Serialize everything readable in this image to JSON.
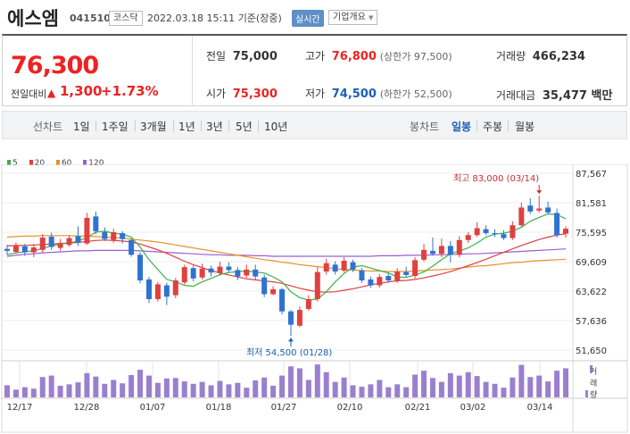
{
  "header": {
    "name": "에스엠",
    "code": "041510",
    "market": "코스닥",
    "datetime": "2022.03.18 15:11",
    "basis": "기준(장중)",
    "realtime": "실시간",
    "company_info": "기업개요"
  },
  "summary": {
    "current_price": "76,300",
    "change_label": "전일대비",
    "change_arrow": "▲",
    "change": "1,300",
    "change_pct": "+1.73%",
    "prev_label": "전일",
    "prev": "75,000",
    "high_label": "고가",
    "high": "76,800",
    "upper_limit": "(상한가 97,500)",
    "volume_label": "거래량",
    "volume": "466,234",
    "open_label": "시가",
    "open": "75,300",
    "low_label": "저가",
    "low": "74,500",
    "lower_limit": "(하한가 52,500)",
    "amount_label": "거래대금",
    "amount": "35,477 백만"
  },
  "toolbar": {
    "line_chart": "선차트",
    "ranges": [
      "1일",
      "1주일",
      "3개월",
      "1년",
      "3년",
      "5년",
      "10년"
    ],
    "candle_chart": "봉차트",
    "candle_types": [
      "일봉",
      "주봉",
      "월봉"
    ],
    "active_candle": "일봉"
  },
  "legend": [
    {
      "label": "5",
      "color": "#3fae49"
    },
    {
      "label": "20",
      "color": "#e04040"
    },
    {
      "label": "60",
      "color": "#e8922e"
    },
    {
      "label": "120",
      "color": "#9b5fd0"
    }
  ],
  "annotations": {
    "high": "최고 83,000 (03/14)",
    "low": "최저 54,500 (01/28)"
  },
  "volume_label": "거래량",
  "chart_data": {
    "type": "candlestick",
    "y_ticks": [
      "87,567",
      "81,581",
      "75,595",
      "69,609",
      "63,622",
      "57,636",
      "51,650"
    ],
    "ylim": [
      51650,
      87567
    ],
    "x_ticks": [
      "12/17",
      "12/28",
      "01/07",
      "01/18",
      "01/27",
      "02/10",
      "02/21",
      "03/02",
      "03/14"
    ],
    "up_color": "#e04040",
    "down_color": "#2f73d1",
    "candles": [
      {
        "o": 72200,
        "c": 71800,
        "h": 73000,
        "l": 71000
      },
      {
        "o": 71600,
        "c": 72800,
        "h": 73500,
        "l": 71200
      },
      {
        "o": 72700,
        "c": 71500,
        "h": 73200,
        "l": 70800
      },
      {
        "o": 71500,
        "c": 72500,
        "h": 73200,
        "l": 70500
      },
      {
        "o": 72000,
        "c": 74500,
        "h": 75200,
        "l": 71500
      },
      {
        "o": 74700,
        "c": 72600,
        "h": 75500,
        "l": 72000
      },
      {
        "o": 72400,
        "c": 73200,
        "h": 74200,
        "l": 71800
      },
      {
        "o": 73000,
        "c": 74400,
        "h": 75000,
        "l": 72600
      },
      {
        "o": 74800,
        "c": 73500,
        "h": 76800,
        "l": 72800
      },
      {
        "o": 73300,
        "c": 78500,
        "h": 79500,
        "l": 73000
      },
      {
        "o": 78800,
        "c": 75800,
        "h": 79800,
        "l": 75200
      },
      {
        "o": 75600,
        "c": 74200,
        "h": 76600,
        "l": 73800
      },
      {
        "o": 74000,
        "c": 75600,
        "h": 76300,
        "l": 73400
      },
      {
        "o": 75400,
        "c": 74200,
        "h": 75800,
        "l": 73300
      },
      {
        "o": 74000,
        "c": 71000,
        "h": 74300,
        "l": 70600
      },
      {
        "o": 71000,
        "c": 65800,
        "h": 71500,
        "l": 65200
      },
      {
        "o": 66000,
        "c": 62000,
        "h": 66500,
        "l": 61200
      },
      {
        "o": 62000,
        "c": 65000,
        "h": 65500,
        "l": 61500
      },
      {
        "o": 64800,
        "c": 62500,
        "h": 65300,
        "l": 60800
      },
      {
        "o": 62800,
        "c": 65800,
        "h": 66300,
        "l": 62200
      },
      {
        "o": 65400,
        "c": 68500,
        "h": 69000,
        "l": 65000
      },
      {
        "o": 68300,
        "c": 66200,
        "h": 68800,
        "l": 65600
      },
      {
        "o": 66400,
        "c": 68200,
        "h": 69200,
        "l": 66000
      },
      {
        "o": 68200,
        "c": 67400,
        "h": 68800,
        "l": 66600
      },
      {
        "o": 67300,
        "c": 68600,
        "h": 69600,
        "l": 66800
      },
      {
        "o": 68600,
        "c": 67900,
        "h": 69500,
        "l": 67300
      },
      {
        "o": 67900,
        "c": 66600,
        "h": 68500,
        "l": 65900
      },
      {
        "o": 66800,
        "c": 68000,
        "h": 69000,
        "l": 66300
      },
      {
        "o": 68000,
        "c": 66600,
        "h": 69000,
        "l": 66000
      },
      {
        "o": 66400,
        "c": 63000,
        "h": 67000,
        "l": 62400
      },
      {
        "o": 63000,
        "c": 64000,
        "h": 64600,
        "l": 62800
      },
      {
        "o": 64000,
        "c": 59500,
        "h": 64300,
        "l": 58900
      },
      {
        "o": 59500,
        "c": 56800,
        "h": 59800,
        "l": 54500
      },
      {
        "o": 56600,
        "c": 59800,
        "h": 60500,
        "l": 56300
      },
      {
        "o": 60000,
        "c": 62000,
        "h": 62800,
        "l": 59600
      },
      {
        "o": 62000,
        "c": 67500,
        "h": 68500,
        "l": 61500
      },
      {
        "o": 67600,
        "c": 69300,
        "h": 70200,
        "l": 67000
      },
      {
        "o": 69000,
        "c": 67600,
        "h": 69700,
        "l": 67000
      },
      {
        "o": 67800,
        "c": 69800,
        "h": 70500,
        "l": 67400
      },
      {
        "o": 69500,
        "c": 68000,
        "h": 70000,
        "l": 67500
      },
      {
        "o": 67800,
        "c": 65800,
        "h": 68300,
        "l": 65300
      },
      {
        "o": 66000,
        "c": 64800,
        "h": 66600,
        "l": 64300
      },
      {
        "o": 64800,
        "c": 66500,
        "h": 67100,
        "l": 64300
      },
      {
        "o": 66700,
        "c": 65800,
        "h": 67300,
        "l": 65300
      },
      {
        "o": 65800,
        "c": 67600,
        "h": 68300,
        "l": 65300
      },
      {
        "o": 67500,
        "c": 66900,
        "h": 68600,
        "l": 66400
      },
      {
        "o": 66700,
        "c": 69900,
        "h": 70500,
        "l": 66200
      },
      {
        "o": 70000,
        "c": 72000,
        "h": 73200,
        "l": 69600
      },
      {
        "o": 71800,
        "c": 71200,
        "h": 74500,
        "l": 70800
      },
      {
        "o": 71200,
        "c": 72800,
        "h": 74300,
        "l": 70500
      },
      {
        "o": 72800,
        "c": 71000,
        "h": 73800,
        "l": 69500
      },
      {
        "o": 71000,
        "c": 74000,
        "h": 74800,
        "l": 70500
      },
      {
        "o": 74000,
        "c": 75000,
        "h": 75600,
        "l": 73400
      },
      {
        "o": 75000,
        "c": 76400,
        "h": 77600,
        "l": 74600
      },
      {
        "o": 76200,
        "c": 75400,
        "h": 77000,
        "l": 75000
      },
      {
        "o": 75400,
        "c": 75200,
        "h": 76200,
        "l": 74600
      },
      {
        "o": 75200,
        "c": 74400,
        "h": 76000,
        "l": 74000
      },
      {
        "o": 74400,
        "c": 77000,
        "h": 77800,
        "l": 74000
      },
      {
        "o": 77000,
        "c": 80600,
        "h": 81600,
        "l": 76600
      },
      {
        "o": 81000,
        "c": 79800,
        "h": 82500,
        "l": 79300
      },
      {
        "o": 80000,
        "c": 80400,
        "h": 83000,
        "l": 79600
      },
      {
        "o": 80600,
        "c": 79600,
        "h": 81800,
        "l": 79200
      },
      {
        "o": 79500,
        "c": 75000,
        "h": 80400,
        "l": 74500
      },
      {
        "o": 75300,
        "c": 76300,
        "h": 76800,
        "l": 74500
      }
    ],
    "ma5": [
      71000,
      71400,
      71600,
      71800,
      72300,
      72800,
      73200,
      73400,
      73800,
      74500,
      75600,
      75800,
      75400,
      75200,
      74600,
      72600,
      70000,
      68000,
      66000,
      65500,
      64800,
      64600,
      65500,
      66200,
      67000,
      67400,
      67600,
      67700,
      67500,
      67300,
      66500,
      65500,
      63500,
      62300,
      61800,
      62000,
      63500,
      65500,
      67200,
      68500,
      68800,
      68300,
      67800,
      67300,
      66500,
      66400,
      66900,
      67500,
      68700,
      70000,
      71200,
      71800,
      72400,
      73400,
      74600,
      75200,
      75400,
      75800,
      76600,
      77800,
      78600,
      79300,
      79200,
      78300
    ],
    "ma20": [
      72800,
      72900,
      72900,
      73000,
      73100,
      73200,
      73300,
      73400,
      73500,
      73700,
      73900,
      74000,
      73900,
      73800,
      73600,
      73200,
      72600,
      72000,
      71300,
      70500,
      69700,
      69000,
      68400,
      67800,
      67300,
      66900,
      66500,
      66100,
      65900,
      65700,
      65500,
      65200,
      64700,
      64200,
      63800,
      63500,
      63400,
      63500,
      63800,
      64100,
      64500,
      64900,
      65200,
      65500,
      65700,
      65800,
      66000,
      66300,
      66700,
      67100,
      67600,
      68200,
      68800,
      69400,
      70100,
      70800,
      71500,
      72200,
      72900,
      73500,
      74100,
      74600,
      75000,
      75300
    ],
    "ma60": [
      74600,
      74700,
      74800,
      74800,
      74900,
      74900,
      74900,
      74900,
      74800,
      74800,
      74700,
      74600,
      74500,
      74400,
      74200,
      74000,
      73800,
      73600,
      73300,
      73000,
      72700,
      72400,
      72100,
      71800,
      71500,
      71200,
      70900,
      70600,
      70300,
      70000,
      69800,
      69500,
      69300,
      69000,
      68800,
      68600,
      68400,
      68200,
      68000,
      67900,
      67800,
      67700,
      67700,
      67600,
      67600,
      67600,
      67700,
      67800,
      67900,
      68000,
      68100,
      68300,
      68500,
      68700,
      68800,
      69000,
      69200,
      69400,
      69500,
      69700,
      69800,
      69900,
      70000,
      70100
    ],
    "ma120": [
      70700,
      70900,
      71100,
      71200,
      71400,
      71500,
      71600,
      71700,
      71800,
      71800,
      71900,
      71900,
      71900,
      71900,
      71900,
      71800,
      71700,
      71600,
      71500,
      71400,
      71300,
      71200,
      71100,
      71000,
      71000,
      70900,
      70900,
      70900,
      70800,
      70800,
      70700,
      70700,
      70700,
      70700,
      70700,
      70700,
      70700,
      70700,
      70700,
      70700,
      70700,
      70700,
      70800,
      70800,
      70800,
      70900,
      70900,
      70900,
      71000,
      71000,
      71100,
      71100,
      71200,
      71200,
      71300,
      71400,
      71500,
      71600,
      71700,
      71800,
      71900,
      72000,
      72100,
      72200
    ],
    "volume": [
      25,
      16,
      21,
      18,
      42,
      45,
      24,
      27,
      31,
      50,
      43,
      28,
      36,
      29,
      46,
      57,
      45,
      30,
      39,
      40,
      33,
      28,
      32,
      25,
      34,
      27,
      30,
      20,
      35,
      41,
      24,
      45,
      64,
      60,
      36,
      68,
      52,
      32,
      41,
      25,
      22,
      27,
      36,
      21,
      27,
      21,
      47,
      55,
      40,
      32,
      50,
      45,
      52,
      44,
      32,
      28,
      20,
      41,
      67,
      42,
      45,
      33,
      55,
      60
    ],
    "volume_ylim": [
      0,
      70
    ]
  }
}
